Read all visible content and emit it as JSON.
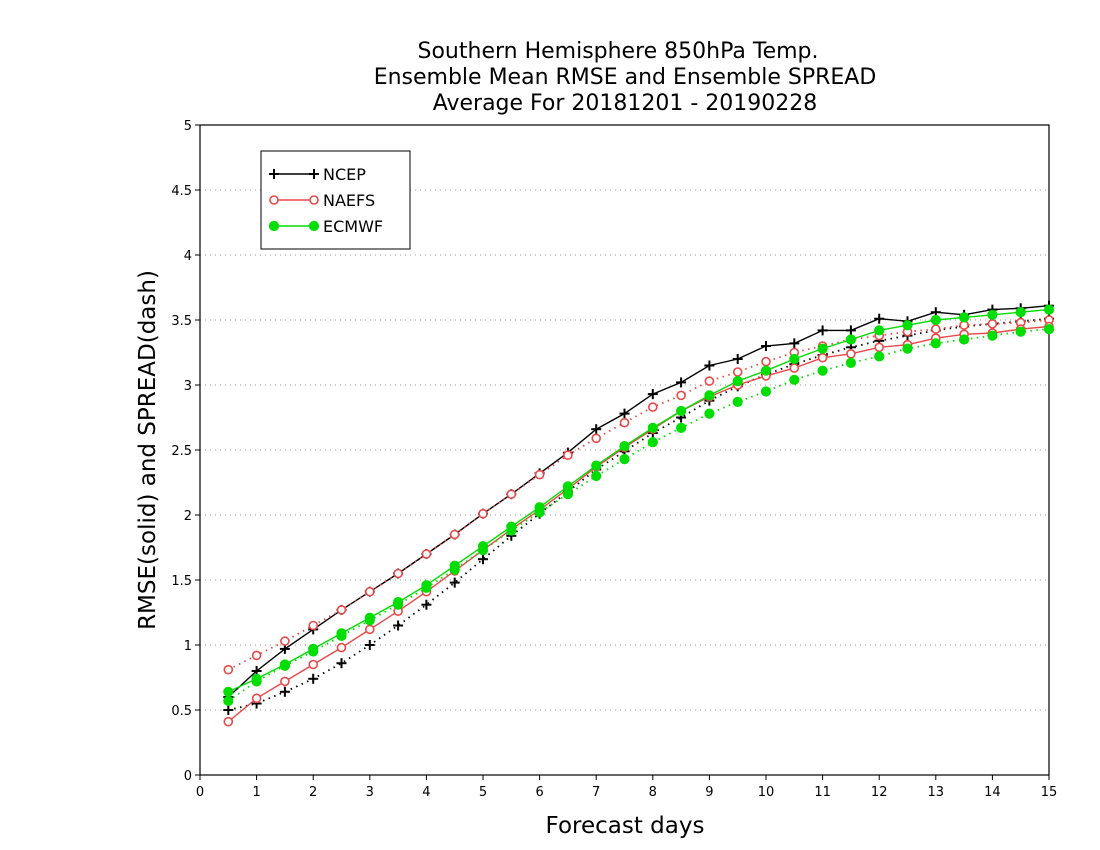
{
  "chart_data": {
    "type": "line",
    "title": [
      "Southern Hemisphere 850hPa Temp.",
      "Ensemble Mean RMSE and Ensemble SPREAD",
      "Average For 20181201 - 20190228"
    ],
    "xlabel": "Forecast days",
    "ylabel": "RMSE(solid) and SPREAD(dash)",
    "xlim": [
      0,
      15
    ],
    "ylim": [
      0,
      5
    ],
    "x_ticks": [
      "0",
      "1",
      "2",
      "3",
      "4",
      "5",
      "6",
      "7",
      "8",
      "9",
      "10",
      "11",
      "12",
      "13",
      "14",
      "15"
    ],
    "y_ticks": [
      "0",
      "0.5",
      "1",
      "1.5",
      "2",
      "2.5",
      "3",
      "3.5",
      "4",
      "4.5",
      "5"
    ],
    "grid": "horizontal dotted",
    "legend_position": "top-left",
    "x": [
      0.5,
      1,
      1.5,
      2,
      2.5,
      3,
      3.5,
      4,
      4.5,
      5,
      5.5,
      6,
      6.5,
      7,
      7.5,
      8,
      8.5,
      9,
      9.5,
      10,
      10.5,
      11,
      11.5,
      12,
      12.5,
      13,
      13.5,
      14,
      14.5,
      15
    ],
    "series": [
      {
        "name": "NCEP",
        "color": "#000000",
        "marker": "plus",
        "rmse": [
          0.6,
          0.8,
          0.97,
          1.12,
          1.27,
          1.41,
          1.55,
          1.7,
          1.85,
          2.01,
          2.16,
          2.32,
          2.48,
          2.66,
          2.78,
          2.93,
          3.02,
          3.15,
          3.2,
          3.3,
          3.32,
          3.42,
          3.42,
          3.51,
          3.49,
          3.56,
          3.54,
          3.58,
          3.59,
          3.61
        ],
        "spread": [
          0.5,
          0.55,
          0.64,
          0.74,
          0.86,
          1.0,
          1.15,
          1.31,
          1.48,
          1.66,
          1.84,
          2.01,
          2.18,
          2.35,
          2.49,
          2.63,
          2.75,
          2.88,
          2.99,
          3.08,
          3.16,
          3.23,
          3.29,
          3.34,
          3.38,
          3.42,
          3.45,
          3.47,
          3.49,
          3.51
        ]
      },
      {
        "name": "NAEFS",
        "color": "#e84848",
        "marker": "open-circle",
        "rmse": [
          0.41,
          0.59,
          0.72,
          0.85,
          0.98,
          1.12,
          1.26,
          1.41,
          1.57,
          1.73,
          1.89,
          2.04,
          2.2,
          2.37,
          2.52,
          2.66,
          2.8,
          2.91,
          3.0,
          3.07,
          3.13,
          3.21,
          3.24,
          3.29,
          3.31,
          3.36,
          3.39,
          3.4,
          3.43,
          3.45
        ],
        "spread": [
          0.81,
          0.92,
          1.03,
          1.15,
          1.27,
          1.41,
          1.55,
          1.7,
          1.85,
          2.01,
          2.16,
          2.31,
          2.46,
          2.59,
          2.71,
          2.83,
          2.92,
          3.03,
          3.1,
          3.18,
          3.25,
          3.3,
          3.35,
          3.38,
          3.41,
          3.43,
          3.46,
          3.47,
          3.48,
          3.5
        ]
      },
      {
        "name": "ECMWF",
        "color": "#00dd00",
        "marker": "filled-circle",
        "rmse": [
          0.64,
          0.74,
          0.85,
          0.97,
          1.09,
          1.21,
          1.33,
          1.46,
          1.61,
          1.76,
          1.91,
          2.06,
          2.22,
          2.38,
          2.53,
          2.67,
          2.8,
          2.92,
          3.03,
          3.11,
          3.2,
          3.28,
          3.35,
          3.42,
          3.46,
          3.5,
          3.52,
          3.54,
          3.56,
          3.58
        ],
        "spread": [
          0.57,
          0.72,
          0.84,
          0.95,
          1.07,
          1.19,
          1.31,
          1.44,
          1.58,
          1.73,
          1.88,
          2.02,
          2.16,
          2.3,
          2.43,
          2.56,
          2.67,
          2.78,
          2.87,
          2.95,
          3.04,
          3.11,
          3.17,
          3.22,
          3.28,
          3.32,
          3.35,
          3.38,
          3.41,
          3.43
        ]
      }
    ]
  }
}
